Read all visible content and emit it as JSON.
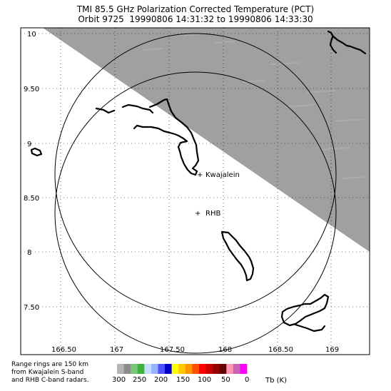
{
  "title_line1": "TMI 85.5 GHz Polarization Corrected Temperature (PCT)",
  "title_line2": "Orbit 9725  19990806 14:31:32 to 19990806 14:33:30",
  "lat_ticks": [
    "10",
    "9.50",
    "9",
    "8.50",
    "8",
    "7.50"
  ],
  "lon_ticks": [
    "166.50",
    "167",
    "167.50",
    "168",
    "168.50",
    "169"
  ],
  "locations": {
    "kwajalein": "Kwajalein",
    "rhb": "RHB"
  },
  "footnote": [
    "Range rings are 150 km",
    "from Kwajalein S-band",
    "and RHB C-band radars."
  ],
  "colorbar": {
    "labels": [
      "300",
      "250",
      "200",
      "150",
      "100",
      "50",
      "0"
    ],
    "unit": "Tb (K)",
    "colors": [
      "#b4b4b4",
      "#8c8c8c",
      "#78c878",
      "#3cb43c",
      "#c8dcff",
      "#96b4ff",
      "#5050ff",
      "#0000c8",
      "#ffff00",
      "#ffc800",
      "#ff9600",
      "#ff5000",
      "#ff0000",
      "#c80000",
      "#960000",
      "#640000",
      "#ff96b4",
      "#c864b4",
      "#ff00ff"
    ]
  }
}
